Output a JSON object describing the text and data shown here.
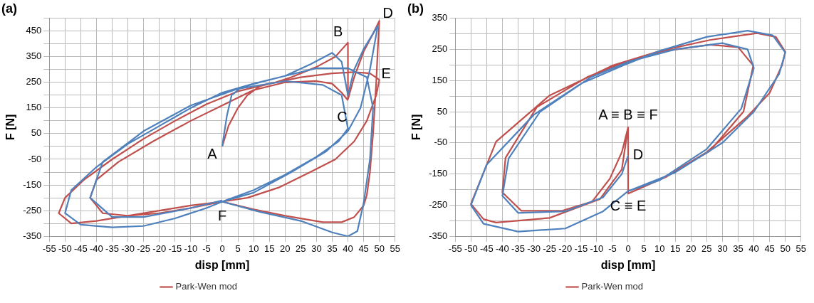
{
  "chart_data": [
    {
      "type": "line",
      "title": "(a)",
      "xlabel": "disp [mm]",
      "ylabel": "F [N]",
      "legend": "bottom",
      "grid": true,
      "marker": "none",
      "line_style": "solid",
      "xlim": [
        -55,
        55
      ],
      "xticks": [
        -55,
        -50,
        -45,
        -40,
        -35,
        -30,
        -25,
        -20,
        -15,
        -10,
        -5,
        0,
        5,
        10,
        15,
        20,
        25,
        30,
        35,
        40,
        45,
        50,
        55
      ],
      "ylim": [
        -350,
        500
      ],
      "yticks": [
        -350,
        {
          "value": -300,
          "label": null
        },
        -250,
        {
          "value": -200,
          "label": null
        },
        -150,
        {
          "value": -100,
          "label": null
        },
        -50,
        {
          "value": 0,
          "label": null
        },
        50,
        {
          "value": 100,
          "label": null
        },
        150,
        {
          "value": 200,
          "label": null
        },
        250,
        {
          "value": 300,
          "label": null
        },
        350,
        {
          "value": 400,
          "label": null
        },
        450,
        {
          "value": 500,
          "label": null
        }
      ],
      "annotations": [
        {
          "text": "A",
          "x": 0,
          "y": 0
        },
        {
          "text": "B",
          "x": 40,
          "y": 405
        },
        {
          "text": "C",
          "x": 40,
          "y": 184
        },
        {
          "text": "D",
          "x": 50,
          "y": 490
        },
        {
          "text": "E",
          "x": 49,
          "y": 280
        },
        {
          "text": "F",
          "x": 0,
          "y": -217
        }
      ],
      "series": [
        {
          "color": "#4f81bd",
          "x": [
            0,
            1.5,
            3,
            6,
            12,
            20,
            28,
            35,
            38,
            40,
            42,
            45,
            49.5,
            47,
            44,
            40,
            33,
            22,
            10,
            0,
            12,
            25,
            35,
            40,
            43,
            45,
            47,
            48,
            46,
            40,
            30,
            20,
            10,
            0,
            -10,
            -20,
            -30,
            -40,
            -48,
            -50,
            -45,
            -35,
            -25,
            -15,
            -5,
            0,
            10,
            20,
            30,
            37,
            40,
            38,
            32,
            20,
            5,
            -10,
            -25,
            -38,
            -42,
            -35,
            -25,
            -10,
            0
          ],
          "values": [
            0,
            120,
            200,
            230,
            250,
            275,
            320,
            365,
            330,
            200,
            300,
            380,
            470,
            300,
            150,
            60,
            -20,
            -100,
            -180,
            -215,
            -255,
            -290,
            -335,
            -350,
            -330,
            -220,
            -50,
            150,
            270,
            305,
            305,
            275,
            245,
            210,
            150,
            80,
            10,
            -80,
            -170,
            -260,
            -305,
            -315,
            -310,
            -280,
            -240,
            -215,
            -170,
            -110,
            -40,
            20,
            70,
            200,
            240,
            255,
            225,
            160,
            60,
            -60,
            -200,
            -275,
            -275,
            -240,
            -210
          ]
        },
        {
          "name": "Park-Wen mod",
          "color": "#c0504d",
          "x": [
            0,
            2,
            5,
            8,
            12,
            17,
            22,
            30,
            36,
            40,
            40,
            42,
            45,
            48,
            50,
            49.5,
            49,
            48,
            47,
            46,
            45,
            42,
            38,
            32,
            20,
            10,
            0,
            -10,
            -20,
            -30,
            -40,
            -48,
            -52,
            -50,
            -44,
            -35,
            -25,
            -15,
            -5,
            5,
            15,
            25,
            35,
            42,
            47,
            50,
            49,
            46,
            42,
            36,
            28,
            18,
            8,
            0,
            -10,
            -20,
            -30,
            -38,
            -42,
            -40,
            -33,
            -22,
            -10,
            0,
            10,
            20,
            30,
            35,
            38,
            40
          ],
          "values": [
            0,
            80,
            150,
            200,
            235,
            250,
            270,
            310,
            350,
            405,
            184,
            270,
            370,
            440,
            490,
            380,
            250,
            50,
            -100,
            -190,
            -230,
            -275,
            -295,
            -295,
            -270,
            -245,
            -215,
            -230,
            -250,
            -270,
            -290,
            -300,
            -260,
            -200,
            -130,
            -50,
            30,
            100,
            165,
            215,
            245,
            270,
            285,
            290,
            285,
            260,
            200,
            100,
            20,
            -50,
            -100,
            -160,
            -200,
            -215,
            -240,
            -260,
            -270,
            -260,
            -200,
            -130,
            -60,
            20,
            100,
            160,
            220,
            250,
            255,
            245,
            210,
            180
          ]
        }
      ]
    },
    {
      "type": "line",
      "title": "(b)",
      "xlabel": "disp [mm]",
      "ylabel": "F [N]",
      "legend": "bottom",
      "grid": true,
      "marker": "none",
      "line_style": "solid",
      "xlim": [
        -55,
        55
      ],
      "xticks": [
        -55,
        -50,
        -45,
        -40,
        -35,
        -30,
        -25,
        -20,
        -15,
        -10,
        -5,
        0,
        5,
        10,
        15,
        20,
        25,
        30,
        35,
        40,
        45,
        50,
        55
      ],
      "ylim": [
        -350,
        350
      ],
      "yticks": [
        -350,
        {
          "value": -300,
          "label": null
        },
        -250,
        {
          "value": -200,
          "label": null
        },
        -150,
        {
          "value": -100,
          "label": null
        },
        -50,
        {
          "value": 0,
          "label": null
        },
        50,
        {
          "value": 100,
          "label": null
        },
        150,
        {
          "value": 200,
          "label": null
        },
        250,
        {
          "value": 300,
          "label": null
        },
        350
      ],
      "annotations": [
        {
          "text": "A ≡ B ≡ F",
          "x": 0,
          "y": 0
        },
        {
          "text": "D",
          "x": 0,
          "y": -91
        },
        {
          "text": "C ≡ E",
          "x": 0,
          "y": -213
        }
      ],
      "series": [
        {
          "color": "#4f81bd",
          "x": [
            0,
            15,
            30,
            40,
            48,
            50,
            46,
            38,
            25,
            10,
            0,
            -15,
            -30,
            -45,
            -50,
            -46,
            -35,
            -20,
            -8,
            0,
            10,
            25,
            36,
            40,
            38,
            30,
            15,
            0,
            -12,
            -28,
            -38,
            -40,
            -35,
            -20,
            -8,
            -2,
            0
          ],
          "values": [
            -205,
            -145,
            -50,
            50,
            170,
            240,
            295,
            310,
            290,
            245,
            205,
            140,
            40,
            -120,
            -250,
            -310,
            -335,
            -325,
            -270,
            -205,
            -170,
            -70,
            60,
            190,
            250,
            270,
            250,
            210,
            160,
            50,
            -100,
            -220,
            -275,
            -270,
            -225,
            -150,
            -91
          ]
        },
        {
          "name": "Park-Wen mod",
          "color": "#c0504d",
          "x": [
            0,
            0,
            12,
            25,
            38,
            45,
            49,
            50,
            47,
            41,
            26,
            10.6,
            -5,
            -25,
            -42,
            -50,
            -46,
            -42,
            -25,
            -9,
            -2,
            0,
            -2,
            -5.8,
            -11.5,
            -21,
            -34,
            -40,
            -39,
            -29,
            -13,
            0,
            10.6,
            26,
            35,
            39.8,
            36.7,
            26,
            10.6,
            0
          ],
          "values": [
            0,
            -213,
            -160,
            -80,
            35,
            110,
            200,
            242,
            290,
            302,
            280,
            246,
            198,
            102,
            -46,
            -246,
            -295,
            -306,
            -291,
            -231,
            -135,
            0,
            -80,
            -165,
            -239,
            -268,
            -268,
            -209,
            -98,
            65,
            161,
            213,
            243,
            265,
            257,
            198,
            50,
            -76,
            -165,
            -213
          ]
        }
      ]
    }
  ]
}
